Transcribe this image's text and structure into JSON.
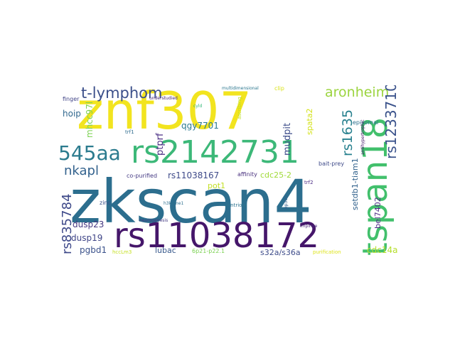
{
  "wordcloud": {
    "words": [
      {
        "text": "zkscan4",
        "color": "#2c6e8e"
      },
      {
        "text": "znf307",
        "color": "#f2e41f"
      },
      {
        "text": "rs11038172",
        "color": "#45166a"
      },
      {
        "text": "rs2142731",
        "color": "#3cb878"
      },
      {
        "text": "tspan18",
        "color": "#42c06c"
      },
      {
        "text": "545aa",
        "color": "#2b7b8e"
      },
      {
        "text": "t-lymphom",
        "color": "#3b4f8a"
      },
      {
        "text": "aronheim",
        "color": "#9bd43e"
      },
      {
        "text": "rs1233710",
        "color": "#3a528b"
      },
      {
        "text": "rs1635",
        "color": "#27808e"
      },
      {
        "text": "nkapl",
        "color": "#33628d"
      },
      {
        "text": "rs835784",
        "color": "#3e4989"
      },
      {
        "text": "hoip",
        "color": "#31688e"
      },
      {
        "text": "mhcc97l",
        "color": "#7bd151"
      },
      {
        "text": "ptprf",
        "color": "#4a2e84"
      },
      {
        "text": "qgy7701",
        "color": "#2a788e"
      },
      {
        "text": "mudpit",
        "color": "#3d4d8a"
      },
      {
        "text": "spata2",
        "color": "#d4e21a"
      },
      {
        "text": "setdb1-tiam1",
        "color": "#33638d"
      },
      {
        "text": "bel7402",
        "color": "#4e2d87"
      },
      {
        "text": "rs11038167",
        "color": "#3e4a89"
      },
      {
        "text": "cdc25-2",
        "color": "#a0da39"
      },
      {
        "text": "pot1",
        "color": "#c2df23"
      },
      {
        "text": "dusp23",
        "color": "#453781"
      },
      {
        "text": "dusp19",
        "color": "#404688"
      },
      {
        "text": "pgbd1",
        "color": "#3b528b"
      },
      {
        "text": "lubac",
        "color": "#38598c"
      },
      {
        "text": "s32a/s36a",
        "color": "#3e4c8a"
      },
      {
        "text": "cdc14a",
        "color": "#b5de2b"
      },
      {
        "text": "finger",
        "color": "#414487"
      },
      {
        "text": "understudied",
        "color": "#482475"
      },
      {
        "text": "multidimensional",
        "color": "#2a768e"
      },
      {
        "text": "clip",
        "color": "#dae319"
      },
      {
        "text": "ascribing",
        "color": "#bddf26"
      },
      {
        "text": "trf1",
        "color": "#2f6c8e"
      },
      {
        "text": "cyld",
        "color": "#35b779"
      },
      {
        "text": "co-purified",
        "color": "#443983"
      },
      {
        "text": "affinity",
        "color": "#472f7d"
      },
      {
        "text": "bait-prey",
        "color": "#3e4a89"
      },
      {
        "text": "episomal",
        "color": "#2d708e"
      },
      {
        "text": "antihypertrophic",
        "color": "#48186a"
      },
      {
        "text": "trf2",
        "color": "#4b2d85"
      },
      {
        "text": "zinc",
        "color": "#3b528b"
      },
      {
        "text": "h3k4me1",
        "color": "#2e6f8e"
      },
      {
        "text": "centriole",
        "color": "#2c738e"
      },
      {
        "text": "ep300",
        "color": "#34618d"
      },
      {
        "text": "neurogenesis",
        "color": "#443a83"
      },
      {
        "text": "impinge",
        "color": "#482878"
      },
      {
        "text": "hccLm3",
        "color": "#c5e021"
      },
      {
        "text": "6p21-p22.1",
        "color": "#7ad151"
      },
      {
        "text": "purification",
        "color": "#dde318"
      }
    ]
  }
}
